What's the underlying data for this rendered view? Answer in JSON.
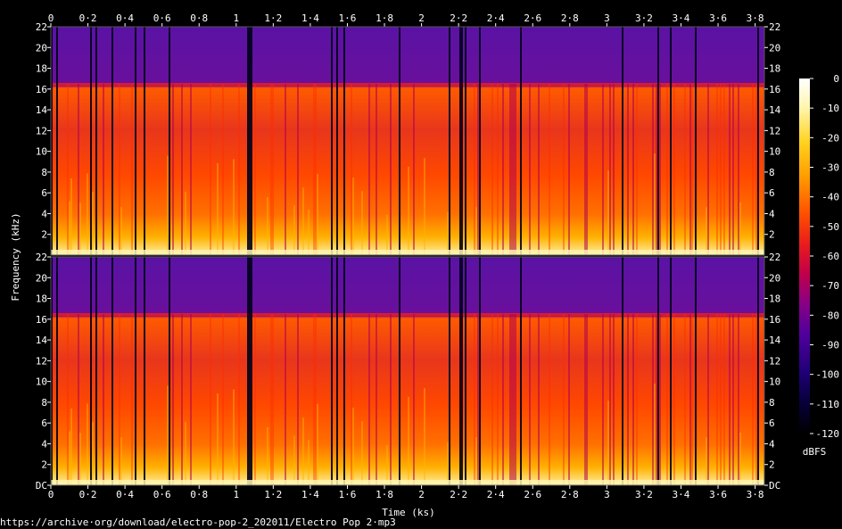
{
  "chart_data": {
    "type": "heatmap",
    "title": "",
    "xlabel": "Time (ks)",
    "ylabel": "Frequency (kHz)",
    "x_ticks": [
      "0",
      "0·2",
      "0·4",
      "0·6",
      "0·8",
      "1",
      "1·2",
      "1·4",
      "1·6",
      "1·8",
      "2",
      "2·2",
      "2·4",
      "2·6",
      "2·8",
      "3",
      "3·2",
      "3·4",
      "3·6",
      "3·8"
    ],
    "x_tick_values": [
      0,
      0.2,
      0.4,
      0.6,
      0.8,
      1.0,
      1.2,
      1.4,
      1.6,
      1.8,
      2.0,
      2.2,
      2.4,
      2.6,
      2.8,
      3.0,
      3.2,
      3.4,
      3.6,
      3.8
    ],
    "xlim": [
      0,
      3.85
    ],
    "y_ticks_top": [
      "22",
      "20",
      "18",
      "16",
      "14",
      "12",
      "10",
      "8",
      "6",
      "4",
      "2"
    ],
    "y_ticks_bottom": [
      "22",
      "20",
      "18",
      "16",
      "14",
      "12",
      "10",
      "8",
      "6",
      "4",
      "2",
      "DC"
    ],
    "y_tick_values": [
      22,
      20,
      18,
      16,
      14,
      12,
      10,
      8,
      6,
      4,
      2,
      0
    ],
    "ylim": [
      0,
      22
    ],
    "channels": 2,
    "lowpass_cutoff_khz": 16.5,
    "colorbar": {
      "label": "dBFS",
      "ticks": [
        "0",
        "-10",
        "-20",
        "-30",
        "-40",
        "-50",
        "-60",
        "-70",
        "-80",
        "-90",
        "-100",
        "-110",
        "-120"
      ],
      "tick_values": [
        0,
        -10,
        -20,
        -30,
        -40,
        -50,
        -60,
        -70,
        -80,
        -90,
        -100,
        -110,
        -120
      ],
      "range": [
        -120,
        0
      ],
      "colors": [
        "#ffffff",
        "#fff3a0",
        "#ffd21e",
        "#ff9400",
        "#ff4600",
        "#e01428",
        "#b40050",
        "#7a008c",
        "#48009e",
        "#1c0070",
        "#070038",
        "#000000"
      ]
    }
  },
  "footer": {
    "source": "https://archive·org/download/electro-pop-2_202011/Electro Pop 2·mp3"
  }
}
